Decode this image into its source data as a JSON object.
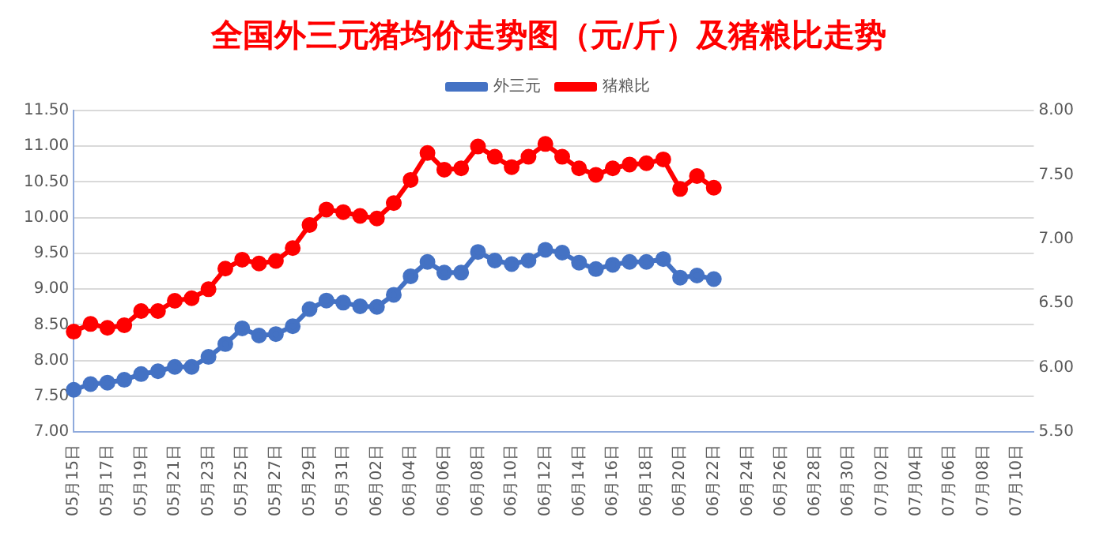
{
  "chart_data": {
    "type": "line",
    "title": "全国外三元猪均价走势图（元/斤）及猪粮比走势",
    "categories": [
      "05月15日",
      null,
      "05月17日",
      null,
      "05月19日",
      null,
      "05月21日",
      null,
      "05月23日",
      null,
      "05月25日",
      null,
      "05月27日",
      null,
      "05月29日",
      null,
      "05月31日",
      null,
      "06月02日",
      null,
      "06月04日",
      null,
      "06月06日",
      null,
      "06月08日",
      null,
      "06月10日",
      null,
      "06月12日",
      null,
      "06月14日",
      null,
      "06月16日",
      null,
      "06月18日",
      null,
      "06月20日",
      null,
      "06月22日",
      null,
      "06月24日",
      null,
      "06月26日",
      null,
      "06月28日",
      null,
      "06月30日",
      null,
      "07月02日",
      null,
      "07月04日",
      null,
      "07月06日",
      null,
      "07月08日",
      null,
      "07月10日",
      null
    ],
    "series": [
      {
        "name": "外三元",
        "color": "#4472c4",
        "values": [
          7.59,
          7.67,
          7.69,
          7.73,
          7.81,
          7.85,
          7.91,
          7.91,
          8.05,
          8.23,
          8.45,
          8.35,
          8.37,
          8.48,
          8.72,
          8.84,
          8.81,
          8.76,
          8.75,
          8.92,
          9.18,
          9.38,
          9.23,
          9.23,
          9.52,
          9.4,
          9.35,
          9.4,
          9.55,
          9.51,
          9.37,
          9.28,
          9.34,
          9.38,
          9.38,
          9.42,
          9.16,
          9.19,
          9.14,
          null,
          null,
          null,
          null,
          null,
          null,
          null,
          null,
          null,
          null,
          null,
          null,
          null,
          null,
          null,
          null,
          null,
          null,
          null
        ]
      },
      {
        "name": "猪粮比",
        "color": "#ff0000",
        "axis": "y2",
        "values": [
          6.28,
          6.34,
          6.31,
          6.33,
          6.44,
          6.44,
          6.52,
          6.54,
          6.61,
          6.77,
          6.84,
          6.81,
          6.83,
          6.93,
          7.11,
          7.23,
          7.21,
          7.18,
          7.16,
          7.28,
          7.46,
          7.67,
          7.54,
          7.55,
          7.72,
          7.64,
          7.56,
          7.64,
          7.74,
          7.64,
          7.55,
          7.5,
          7.55,
          7.58,
          7.59,
          7.62,
          7.39,
          7.49,
          7.4,
          null,
          null,
          null,
          null,
          null,
          null,
          null,
          null,
          null,
          null,
          null,
          null,
          null,
          null,
          null,
          null,
          null,
          null,
          null
        ]
      }
    ],
    "ylim": [
      7,
      11.5
    ],
    "yticks": [
      {
        "value": 7,
        "label": "7.00"
      },
      {
        "value": 7.5,
        "label": "7.50"
      },
      {
        "value": 8,
        "label": "8.00"
      },
      {
        "value": 8.5,
        "label": "8.50"
      },
      {
        "value": 9,
        "label": "9.00"
      },
      {
        "value": 9.5,
        "label": "9.50"
      },
      {
        "value": 10,
        "label": "10.00"
      },
      {
        "value": 10.5,
        "label": "10.50"
      },
      {
        "value": 11,
        "label": "11.00"
      },
      {
        "value": 11.5,
        "label": "11.50"
      }
    ],
    "y2lim": [
      5.5,
      8
    ],
    "y2ticks": [
      {
        "value": 5.5,
        "label": "5.50"
      },
      {
        "value": 6,
        "label": "6.00"
      },
      {
        "value": 6.5,
        "label": "6.50"
      },
      {
        "value": 7,
        "label": "7.00"
      },
      {
        "value": 7.5,
        "label": "7.50"
      },
      {
        "value": 8,
        "label": "8.00"
      }
    ],
    "grid": "y",
    "legend": "top",
    "marker": "circle",
    "line_style": "solid"
  }
}
